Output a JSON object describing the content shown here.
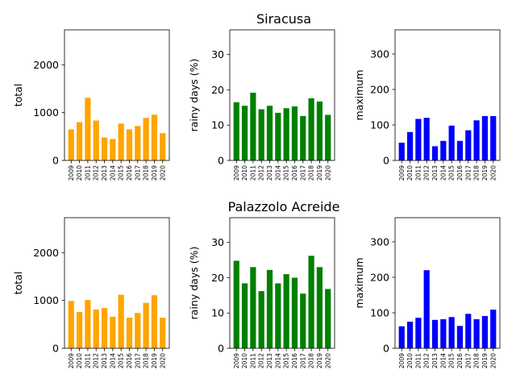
{
  "chart_data": [
    {
      "type": "bar",
      "group_title": "Siracusa",
      "ylabel": "total",
      "color": "#ffa500",
      "ylim": [
        0,
        2730
      ],
      "yticks": [
        0,
        1000,
        2000
      ],
      "categories": [
        "2009",
        "2010",
        "2011",
        "2012",
        "2013",
        "2014",
        "2015",
        "2016",
        "2017",
        "2018",
        "2019",
        "2020"
      ],
      "values": [
        650,
        800,
        1310,
        835,
        480,
        450,
        770,
        650,
        720,
        890,
        955,
        570
      ]
    },
    {
      "type": "bar",
      "group_title": "Siracusa",
      "ylabel": "rainy days (%)",
      "color": "#008000",
      "ylim": [
        0,
        37
      ],
      "yticks": [
        0,
        10,
        20,
        30
      ],
      "categories": [
        "2009",
        "2010",
        "2011",
        "2012",
        "2013",
        "2014",
        "2015",
        "2016",
        "2017",
        "2018",
        "2019",
        "2020"
      ],
      "values": [
        16.5,
        15.5,
        19.2,
        14.5,
        15.5,
        13.5,
        14.8,
        15.3,
        12.6,
        17.6,
        16.7,
        12.9
      ]
    },
    {
      "type": "bar",
      "group_title": "Siracusa",
      "ylabel": "maximum",
      "color": "#0000ff",
      "ylim": [
        0,
        368
      ],
      "yticks": [
        0,
        100,
        200,
        300
      ],
      "categories": [
        "2009",
        "2010",
        "2011",
        "2012",
        "2013",
        "2014",
        "2015",
        "2016",
        "2017",
        "2018",
        "2019",
        "2020"
      ],
      "values": [
        50,
        80,
        117,
        120,
        40,
        55,
        98,
        55,
        85,
        113,
        125,
        125
      ]
    },
    {
      "type": "bar",
      "group_title": "Palazzolo Acreide",
      "ylabel": "total",
      "color": "#ffa500",
      "ylim": [
        0,
        2730
      ],
      "yticks": [
        0,
        1000,
        2000
      ],
      "categories": [
        "2009",
        "2010",
        "2011",
        "2012",
        "2013",
        "2014",
        "2015",
        "2016",
        "2017",
        "2018",
        "2019",
        "2020"
      ],
      "values": [
        990,
        760,
        1010,
        810,
        840,
        660,
        1120,
        640,
        740,
        950,
        1110,
        640
      ]
    },
    {
      "type": "bar",
      "group_title": "Palazzolo Acreide",
      "ylabel": "rainy days (%)",
      "color": "#008000",
      "ylim": [
        0,
        37
      ],
      "yticks": [
        0,
        10,
        20,
        30
      ],
      "categories": [
        "2009",
        "2010",
        "2011",
        "2012",
        "2013",
        "2014",
        "2015",
        "2016",
        "2017",
        "2018",
        "2019",
        "2020"
      ],
      "values": [
        24.8,
        18.4,
        23.0,
        16.2,
        22.2,
        18.4,
        21.0,
        20.0,
        15.5,
        26.2,
        23.0,
        16.8
      ]
    },
    {
      "type": "bar",
      "group_title": "Palazzolo Acreide",
      "ylabel": "maximum",
      "color": "#0000ff",
      "ylim": [
        0,
        368
      ],
      "yticks": [
        0,
        100,
        200,
        300
      ],
      "categories": [
        "2009",
        "2010",
        "2011",
        "2012",
        "2013",
        "2014",
        "2015",
        "2016",
        "2017",
        "2018",
        "2019",
        "2020"
      ],
      "values": [
        62,
        75,
        86,
        220,
        80,
        82,
        88,
        63,
        97,
        82,
        91,
        109
      ]
    }
  ]
}
